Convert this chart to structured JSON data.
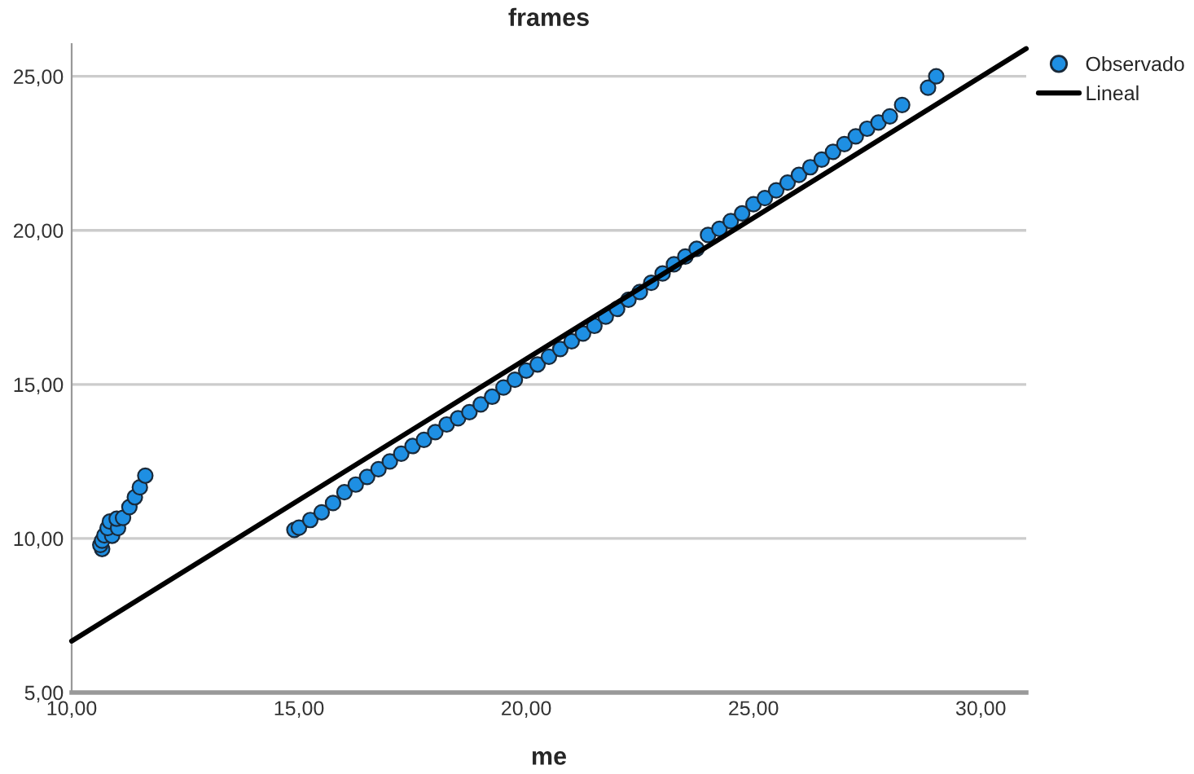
{
  "chart_data": {
    "type": "scatter",
    "title": "frames",
    "xlabel": "me",
    "xlim": [
      10,
      31
    ],
    "ylim": [
      5,
      26.05
    ],
    "xticks": [
      {
        "value": 10,
        "label": "10,00"
      },
      {
        "value": 15,
        "label": "15,00"
      },
      {
        "value": 20,
        "label": "20,00"
      },
      {
        "value": 25,
        "label": "25,00"
      },
      {
        "value": 30,
        "label": "30,00"
      }
    ],
    "yticks": [
      {
        "value": 5,
        "label": "5,00"
      },
      {
        "value": 10,
        "label": "10,00"
      },
      {
        "value": 15,
        "label": "15,00"
      },
      {
        "value": 20,
        "label": "20,00"
      },
      {
        "value": 25,
        "label": "25,00"
      }
    ],
    "grid": "y",
    "legend": "top right",
    "series": [
      {
        "name": "Observado",
        "marker": "circle",
        "color": "#1e8fe3",
        "x": [
          10.67,
          10.63,
          10.67,
          10.72,
          10.89,
          10.79,
          10.84,
          11.02,
          10.99,
          11.13,
          11.27,
          11.39,
          11.5,
          11.62,
          14.9,
          15.0,
          15.25,
          15.5,
          15.75,
          16.0,
          16.25,
          16.5,
          16.75,
          17.0,
          17.25,
          17.5,
          17.75,
          18.0,
          18.25,
          18.5,
          18.75,
          19.0,
          19.25,
          19.5,
          19.75,
          20.0,
          20.25,
          20.5,
          20.75,
          21.0,
          21.25,
          21.5,
          21.75,
          22.0,
          22.25,
          22.5,
          22.75,
          23.0,
          23.25,
          23.5,
          23.75,
          24.0,
          24.25,
          24.5,
          24.75,
          25.0,
          25.25,
          25.5,
          25.75,
          26.0,
          26.25,
          26.5,
          26.75,
          27.0,
          27.25,
          27.5,
          27.75,
          28.0,
          28.27,
          28.84,
          29.02
        ],
        "values": [
          9.66,
          9.79,
          9.93,
          10.1,
          10.09,
          10.34,
          10.55,
          10.34,
          10.64,
          10.67,
          11.02,
          11.34,
          11.66,
          12.04,
          10.28,
          10.35,
          10.6,
          10.85,
          11.15,
          11.5,
          11.75,
          12.0,
          12.25,
          12.5,
          12.75,
          13.0,
          13.2,
          13.45,
          13.7,
          13.9,
          14.1,
          14.35,
          14.6,
          14.9,
          15.15,
          15.45,
          15.65,
          15.9,
          16.15,
          16.4,
          16.65,
          16.9,
          17.2,
          17.45,
          17.75,
          18.0,
          18.3,
          18.6,
          18.9,
          19.15,
          19.4,
          19.85,
          20.05,
          20.3,
          20.55,
          20.85,
          21.05,
          21.3,
          21.55,
          21.8,
          22.05,
          22.3,
          22.55,
          22.8,
          23.05,
          23.3,
          23.5,
          23.7,
          24.07,
          24.63,
          25.0
        ]
      },
      {
        "name": "Lineal",
        "type": "line",
        "color": "#000000",
        "line_style": "solid",
        "x": [
          10,
          31
        ],
        "values": [
          6.67,
          25.9
        ]
      }
    ]
  }
}
